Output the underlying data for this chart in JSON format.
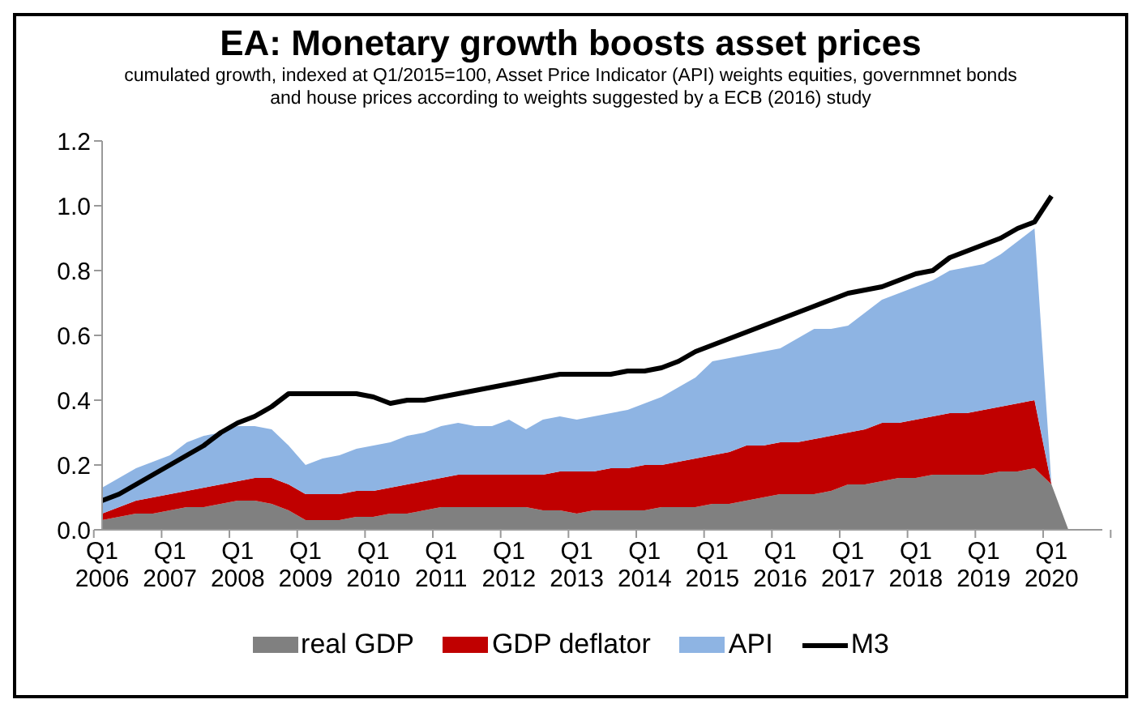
{
  "chart_data": {
    "type": "area",
    "stacked": true,
    "title": "EA: Monetary growth boosts asset prices",
    "subtitle": "cumulated growth, indexed at Q1/2015=100, Asset Price Indicator (API) weights equities, governmnet bonds and house prices according to weights suggested by a ECB (2016) study",
    "categories": [
      "Q1 2006",
      null,
      null,
      null,
      "Q1 2007",
      null,
      null,
      null,
      "Q1 2008",
      null,
      null,
      null,
      "Q1 2009",
      null,
      null,
      null,
      "Q1 2010",
      null,
      null,
      null,
      "Q1 2011",
      null,
      null,
      null,
      "Q1 2012",
      null,
      null,
      null,
      "Q1 2013",
      null,
      null,
      null,
      "Q1 2014",
      null,
      null,
      null,
      "Q1 2015",
      null,
      null,
      null,
      "Q1 2016",
      null,
      null,
      null,
      "Q1 2017",
      null,
      null,
      null,
      "Q1 2018",
      null,
      null,
      null,
      "Q1 2019",
      null,
      null,
      null,
      "Q1 2020",
      null,
      null,
      null
    ],
    "series": [
      {
        "name": "real GDP",
        "color": "#808080",
        "values": [
          0.03,
          0.04,
          0.05,
          0.05,
          0.06,
          0.07,
          0.07,
          0.08,
          0.09,
          0.09,
          0.08,
          0.06,
          0.03,
          0.03,
          0.03,
          0.04,
          0.04,
          0.05,
          0.05,
          0.06,
          0.07,
          0.07,
          0.07,
          0.07,
          0.07,
          0.07,
          0.06,
          0.06,
          0.05,
          0.06,
          0.06,
          0.06,
          0.06,
          0.07,
          0.07,
          0.07,
          0.08,
          0.08,
          0.09,
          0.1,
          0.11,
          0.11,
          0.11,
          0.12,
          0.14,
          0.14,
          0.15,
          0.16,
          0.16,
          0.17,
          0.17,
          0.17,
          0.17,
          0.18,
          0.18,
          0.19,
          0.14,
          0,
          0,
          0
        ]
      },
      {
        "name": "GDP deflator",
        "color": "#c00000",
        "values": [
          0.02,
          0.03,
          0.04,
          0.05,
          0.05,
          0.05,
          0.06,
          0.06,
          0.06,
          0.07,
          0.08,
          0.08,
          0.08,
          0.08,
          0.08,
          0.08,
          0.08,
          0.08,
          0.09,
          0.09,
          0.09,
          0.1,
          0.1,
          0.1,
          0.1,
          0.1,
          0.11,
          0.12,
          0.13,
          0.12,
          0.13,
          0.13,
          0.14,
          0.13,
          0.14,
          0.15,
          0.15,
          0.16,
          0.17,
          0.16,
          0.16,
          0.16,
          0.17,
          0.17,
          0.16,
          0.17,
          0.18,
          0.17,
          0.18,
          0.18,
          0.19,
          0.19,
          0.2,
          0.2,
          0.21,
          0.21,
          0,
          0,
          0,
          0
        ]
      },
      {
        "name": "API",
        "color": "#8eb4e3",
        "values": [
          0.08,
          0.09,
          0.1,
          0.11,
          0.12,
          0.15,
          0.16,
          0.16,
          0.17,
          0.16,
          0.15,
          0.12,
          0.09,
          0.11,
          0.12,
          0.13,
          0.14,
          0.14,
          0.15,
          0.15,
          0.16,
          0.16,
          0.15,
          0.15,
          0.17,
          0.14,
          0.17,
          0.17,
          0.16,
          0.17,
          0.17,
          0.18,
          0.19,
          0.21,
          0.23,
          0.25,
          0.29,
          0.29,
          0.28,
          0.29,
          0.29,
          0.32,
          0.34,
          0.33,
          0.33,
          0.36,
          0.38,
          0.4,
          0.41,
          0.42,
          0.44,
          0.45,
          0.45,
          0.47,
          0.5,
          0.53,
          0,
          0,
          0,
          0
        ]
      },
      {
        "name": "M3",
        "type": "line",
        "color": "#000000",
        "values": [
          0.09,
          0.11,
          0.14,
          0.17,
          0.2,
          0.23,
          0.26,
          0.3,
          0.33,
          0.35,
          0.38,
          0.42,
          0.42,
          0.42,
          0.42,
          0.42,
          0.41,
          0.39,
          0.4,
          0.4,
          0.41,
          0.42,
          0.43,
          0.44,
          0.45,
          0.46,
          0.47,
          0.48,
          0.48,
          0.48,
          0.48,
          0.49,
          0.49,
          0.5,
          0.52,
          0.55,
          0.57,
          0.59,
          0.61,
          0.63,
          0.65,
          0.67,
          0.69,
          0.71,
          0.73,
          0.74,
          0.75,
          0.77,
          0.79,
          0.8,
          0.84,
          0.86,
          0.88,
          0.9,
          0.93,
          0.95,
          1.03,
          null,
          null,
          null
        ]
      }
    ],
    "ylim": [
      0,
      1.2
    ],
    "yticks": [
      {
        "value": 0,
        "label": "0.0"
      },
      0.2,
      0.4,
      0.6,
      0.8,
      {
        "value": 1,
        "label": "1.0"
      },
      1.2
    ],
    "grid": false,
    "legend": "bottom"
  }
}
